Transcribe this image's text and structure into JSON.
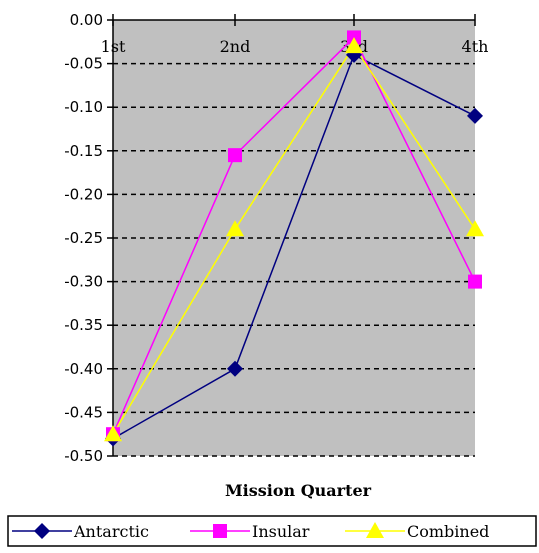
{
  "chart_data": {
    "type": "line",
    "categories": [
      "1st",
      "2nd",
      "3rd",
      "4th"
    ],
    "series": [
      {
        "name": "Antarctic",
        "values": [
          -0.48,
          -0.4,
          -0.04,
          -0.11
        ],
        "color": "#000080",
        "marker": "diamond"
      },
      {
        "name": "Insular",
        "values": [
          -0.475,
          -0.155,
          -0.02,
          -0.3
        ],
        "color": "#FF00FF",
        "marker": "square"
      },
      {
        "name": "Combined",
        "values": [
          -0.475,
          -0.24,
          -0.03,
          -0.24
        ],
        "color": "#FFFF00",
        "marker": "triangle"
      }
    ],
    "yticks": [
      "0.00",
      "-0.05",
      "-0.10",
      "-0.15",
      "-0.20",
      "-0.25",
      "-0.30",
      "-0.35",
      "-0.40",
      "-0.45",
      "-0.50"
    ],
    "ylim": [
      -0.5,
      0
    ],
    "xlabel": "Mission Quarter",
    "ylabel": "",
    "title": "",
    "grid": "horizontal dashed",
    "plot_background": "#C0C0C0",
    "legend_position": "bottom"
  }
}
